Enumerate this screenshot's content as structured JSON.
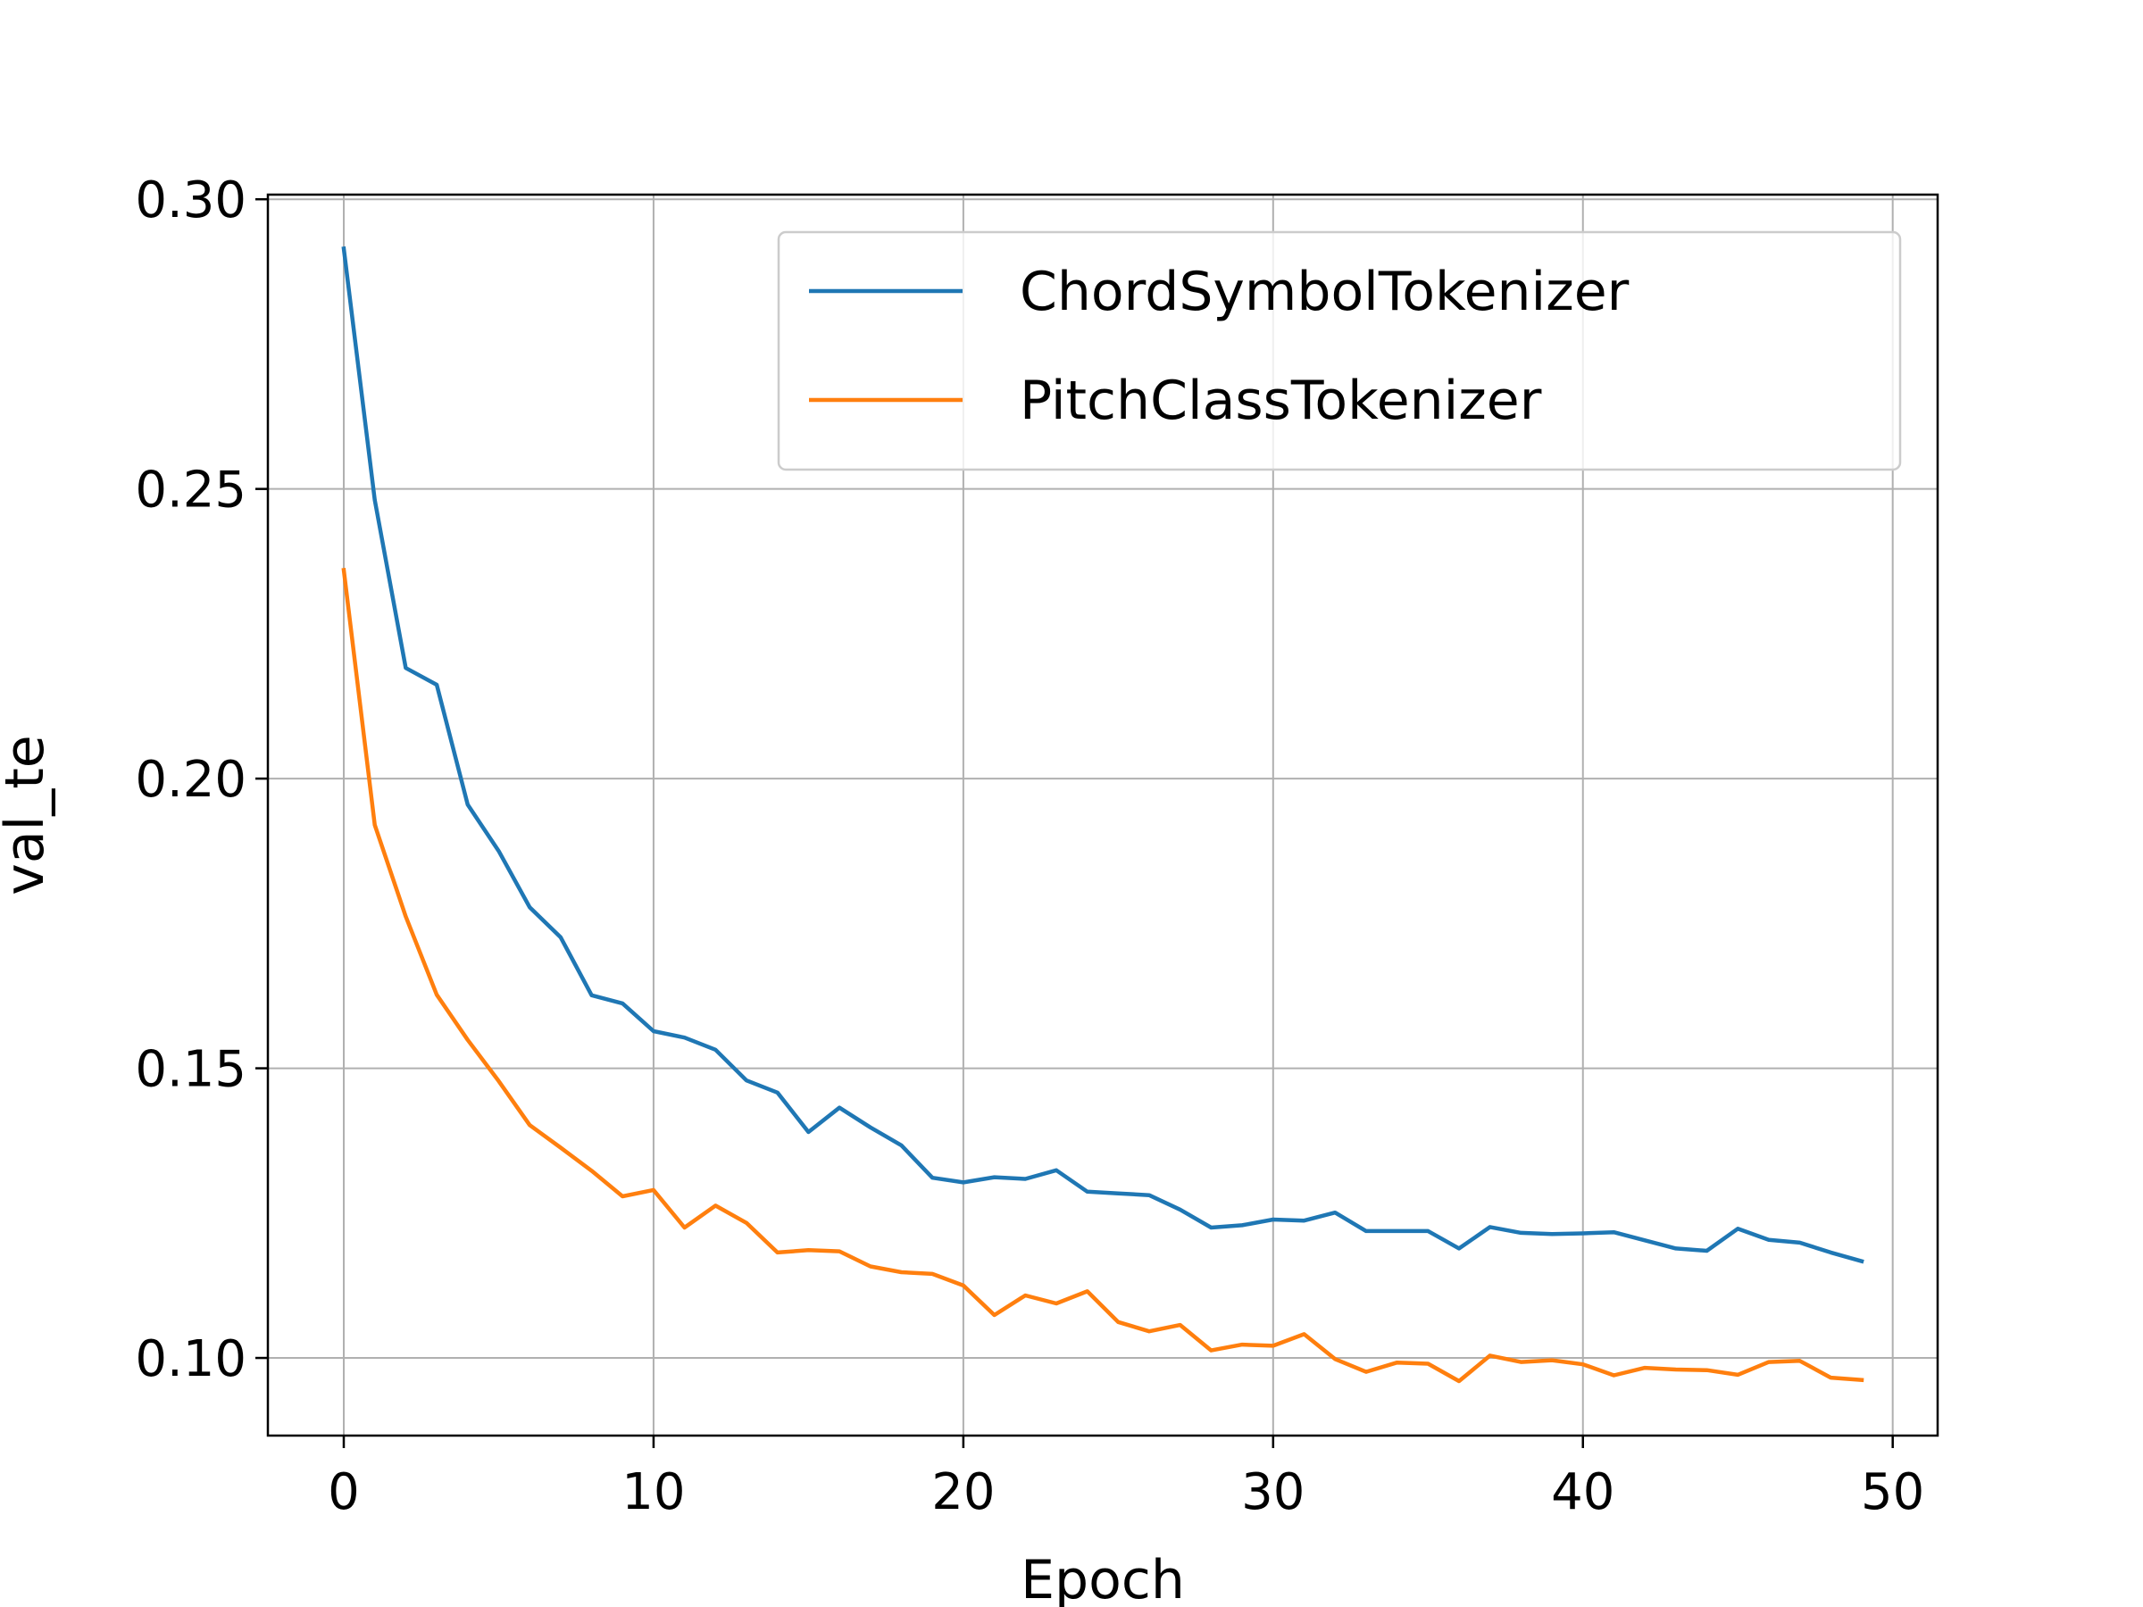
{
  "chart_data": {
    "type": "line",
    "title": "",
    "xlabel": "Epoch",
    "ylabel": "val_te",
    "xlim": [
      -2.45,
      51.45
    ],
    "ylim": [
      0.0866,
      0.3008
    ],
    "xticks": [
      0,
      10,
      20,
      30,
      40,
      50
    ],
    "yticks": [
      0.1,
      0.15,
      0.2,
      0.25,
      0.3
    ],
    "grid": true,
    "legend_position": "upper right",
    "x": [
      0,
      1,
      2,
      3,
      4,
      5,
      6,
      7,
      8,
      9,
      10,
      11,
      12,
      13,
      14,
      15,
      16,
      17,
      18,
      19,
      20,
      21,
      22,
      23,
      24,
      25,
      26,
      27,
      28,
      29,
      30,
      31,
      32,
      33,
      34,
      35,
      36,
      37,
      38,
      39,
      40,
      41,
      42,
      43,
      44,
      45,
      46,
      47,
      48,
      49
    ],
    "series": [
      {
        "name": "ChordSymbolTokenizer",
        "color": "#1f77b4",
        "values": [
          0.2915,
          0.2481,
          0.2191,
          0.2162,
          0.1955,
          0.1875,
          0.1778,
          0.1726,
          0.1626,
          0.1612,
          0.1564,
          0.1553,
          0.1532,
          0.1479,
          0.1458,
          0.139,
          0.1432,
          0.1398,
          0.1367,
          0.1311,
          0.1303,
          0.1312,
          0.1309,
          0.1324,
          0.1287,
          0.1284,
          0.1281,
          0.1256,
          0.1225,
          0.1229,
          0.1239,
          0.1237,
          0.1251,
          0.1219,
          0.1219,
          0.1219,
          0.1189,
          0.1226,
          0.1216,
          0.1214,
          0.1215,
          0.1217,
          0.1203,
          0.1189,
          0.1185,
          0.1223,
          0.1204,
          0.1199,
          0.1182,
          0.1167
        ]
      },
      {
        "name": "PitchClassTokenizer",
        "color": "#ff7f0e",
        "values": [
          0.236,
          0.192,
          0.1762,
          0.1627,
          0.1549,
          0.1478,
          0.1402,
          0.1363,
          0.1323,
          0.1279,
          0.129,
          0.1225,
          0.1263,
          0.1233,
          0.1182,
          0.1186,
          0.1184,
          0.1158,
          0.1148,
          0.1145,
          0.1125,
          0.1074,
          0.1108,
          0.1094,
          0.1115,
          0.1062,
          0.1046,
          0.1057,
          0.1013,
          0.1023,
          0.1021,
          0.1041,
          0.0998,
          0.0976,
          0.0992,
          0.099,
          0.096,
          0.1004,
          0.0993,
          0.0996,
          0.0989,
          0.097,
          0.0983,
          0.098,
          0.0979,
          0.0971,
          0.0993,
          0.0995,
          0.0966,
          0.0962
        ]
      }
    ]
  }
}
